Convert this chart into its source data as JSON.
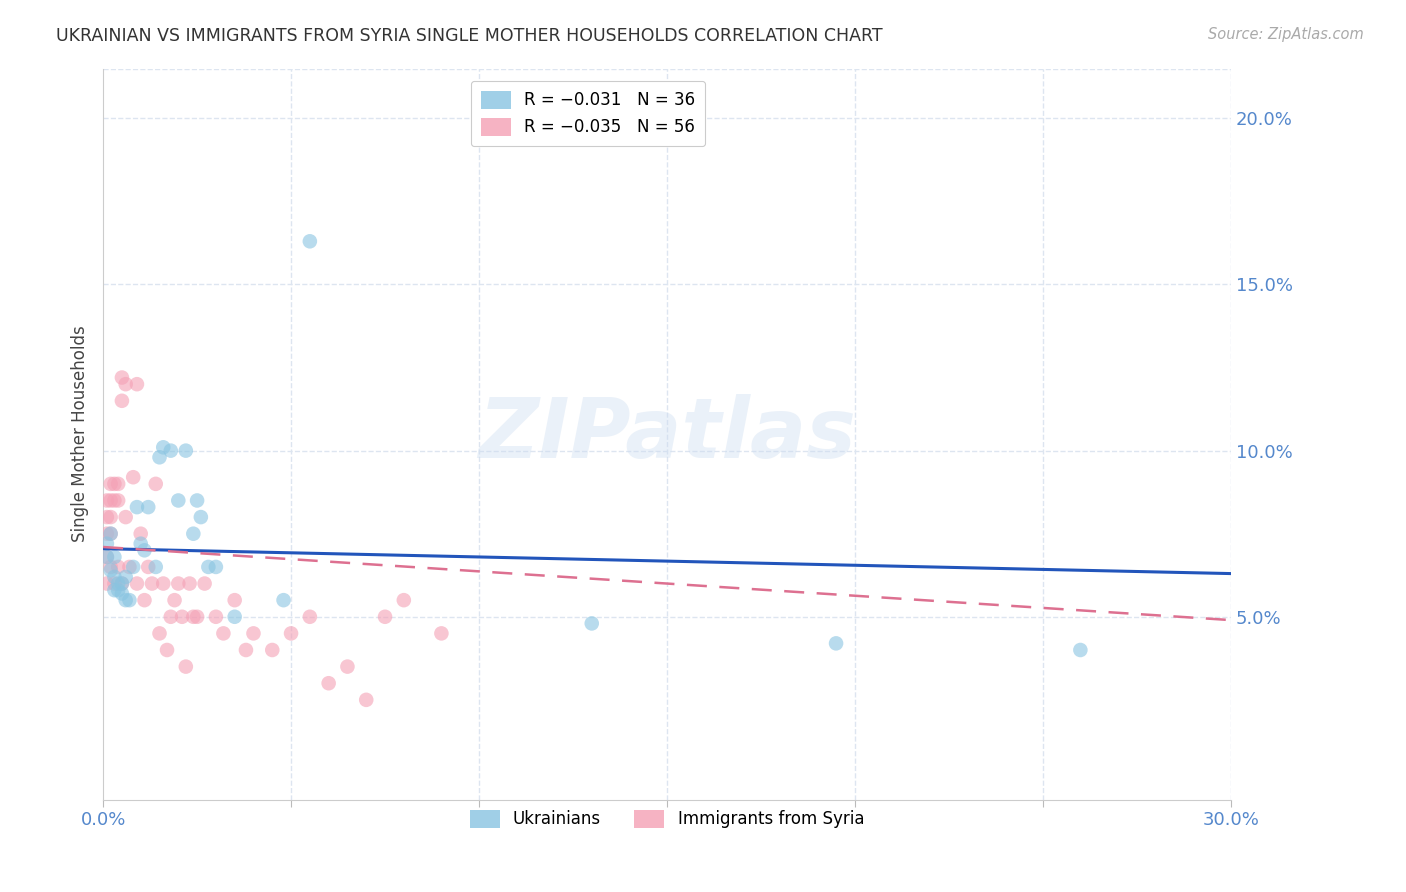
{
  "title": "UKRAINIAN VS IMMIGRANTS FROM SYRIA SINGLE MOTHER HOUSEHOLDS CORRELATION CHART",
  "source": "Source: ZipAtlas.com",
  "ylabel": "Single Mother Households",
  "watermark": "ZIPatlas",
  "xlim": [
    0.0,
    0.3
  ],
  "ylim": [
    -0.005,
    0.215
  ],
  "xticks": [
    0.0,
    0.05,
    0.1,
    0.15,
    0.2,
    0.25,
    0.3
  ],
  "xtick_labels": [
    "0.0%",
    "",
    "",
    "",
    "",
    "",
    "30.0%"
  ],
  "yticks_right": [
    0.05,
    0.1,
    0.15,
    0.2
  ],
  "ytick_labels_right": [
    "5.0%",
    "10.0%",
    "15.0%",
    "20.0%"
  ],
  "blue_color": "#89c4e1",
  "pink_color": "#f4a0b5",
  "blue_line_color": "#2255bb",
  "pink_line_color": "#dd7090",
  "grid_color": "#dde5f0",
  "title_color": "#333333",
  "axis_color": "#5588cc",
  "ukrainians_x": [
    0.001,
    0.001,
    0.002,
    0.002,
    0.003,
    0.003,
    0.003,
    0.004,
    0.004,
    0.005,
    0.005,
    0.006,
    0.006,
    0.007,
    0.008,
    0.009,
    0.01,
    0.011,
    0.012,
    0.014,
    0.015,
    0.016,
    0.018,
    0.02,
    0.022,
    0.024,
    0.025,
    0.026,
    0.028,
    0.03,
    0.035,
    0.048,
    0.055,
    0.13,
    0.195,
    0.26
  ],
  "ukrainians_y": [
    0.072,
    0.068,
    0.075,
    0.064,
    0.062,
    0.068,
    0.058,
    0.058,
    0.06,
    0.06,
    0.057,
    0.055,
    0.062,
    0.055,
    0.065,
    0.083,
    0.072,
    0.07,
    0.083,
    0.065,
    0.098,
    0.101,
    0.1,
    0.085,
    0.1,
    0.075,
    0.085,
    0.08,
    0.065,
    0.065,
    0.05,
    0.055,
    0.163,
    0.048,
    0.042,
    0.04
  ],
  "syria_x": [
    0.001,
    0.001,
    0.001,
    0.001,
    0.001,
    0.002,
    0.002,
    0.002,
    0.002,
    0.002,
    0.003,
    0.003,
    0.003,
    0.004,
    0.004,
    0.004,
    0.005,
    0.005,
    0.005,
    0.006,
    0.006,
    0.007,
    0.008,
    0.009,
    0.009,
    0.01,
    0.011,
    0.012,
    0.013,
    0.014,
    0.015,
    0.016,
    0.017,
    0.018,
    0.019,
    0.02,
    0.021,
    0.022,
    0.023,
    0.024,
    0.025,
    0.027,
    0.03,
    0.032,
    0.035,
    0.038,
    0.04,
    0.045,
    0.05,
    0.055,
    0.06,
    0.065,
    0.07,
    0.075,
    0.08,
    0.09
  ],
  "syria_y": [
    0.085,
    0.08,
    0.075,
    0.068,
    0.06,
    0.09,
    0.085,
    0.08,
    0.075,
    0.065,
    0.09,
    0.085,
    0.06,
    0.09,
    0.085,
    0.065,
    0.122,
    0.115,
    0.06,
    0.12,
    0.08,
    0.065,
    0.092,
    0.12,
    0.06,
    0.075,
    0.055,
    0.065,
    0.06,
    0.09,
    0.045,
    0.06,
    0.04,
    0.05,
    0.055,
    0.06,
    0.05,
    0.035,
    0.06,
    0.05,
    0.05,
    0.06,
    0.05,
    0.045,
    0.055,
    0.04,
    0.045,
    0.04,
    0.045,
    0.05,
    0.03,
    0.035,
    0.025,
    0.05,
    0.055,
    0.045
  ],
  "ukr_trend_x": [
    0.0,
    0.3
  ],
  "ukr_trend_y": [
    0.0705,
    0.063
  ],
  "syr_trend_x": [
    0.0,
    0.3
  ],
  "syr_trend_y": [
    0.071,
    0.049
  ]
}
